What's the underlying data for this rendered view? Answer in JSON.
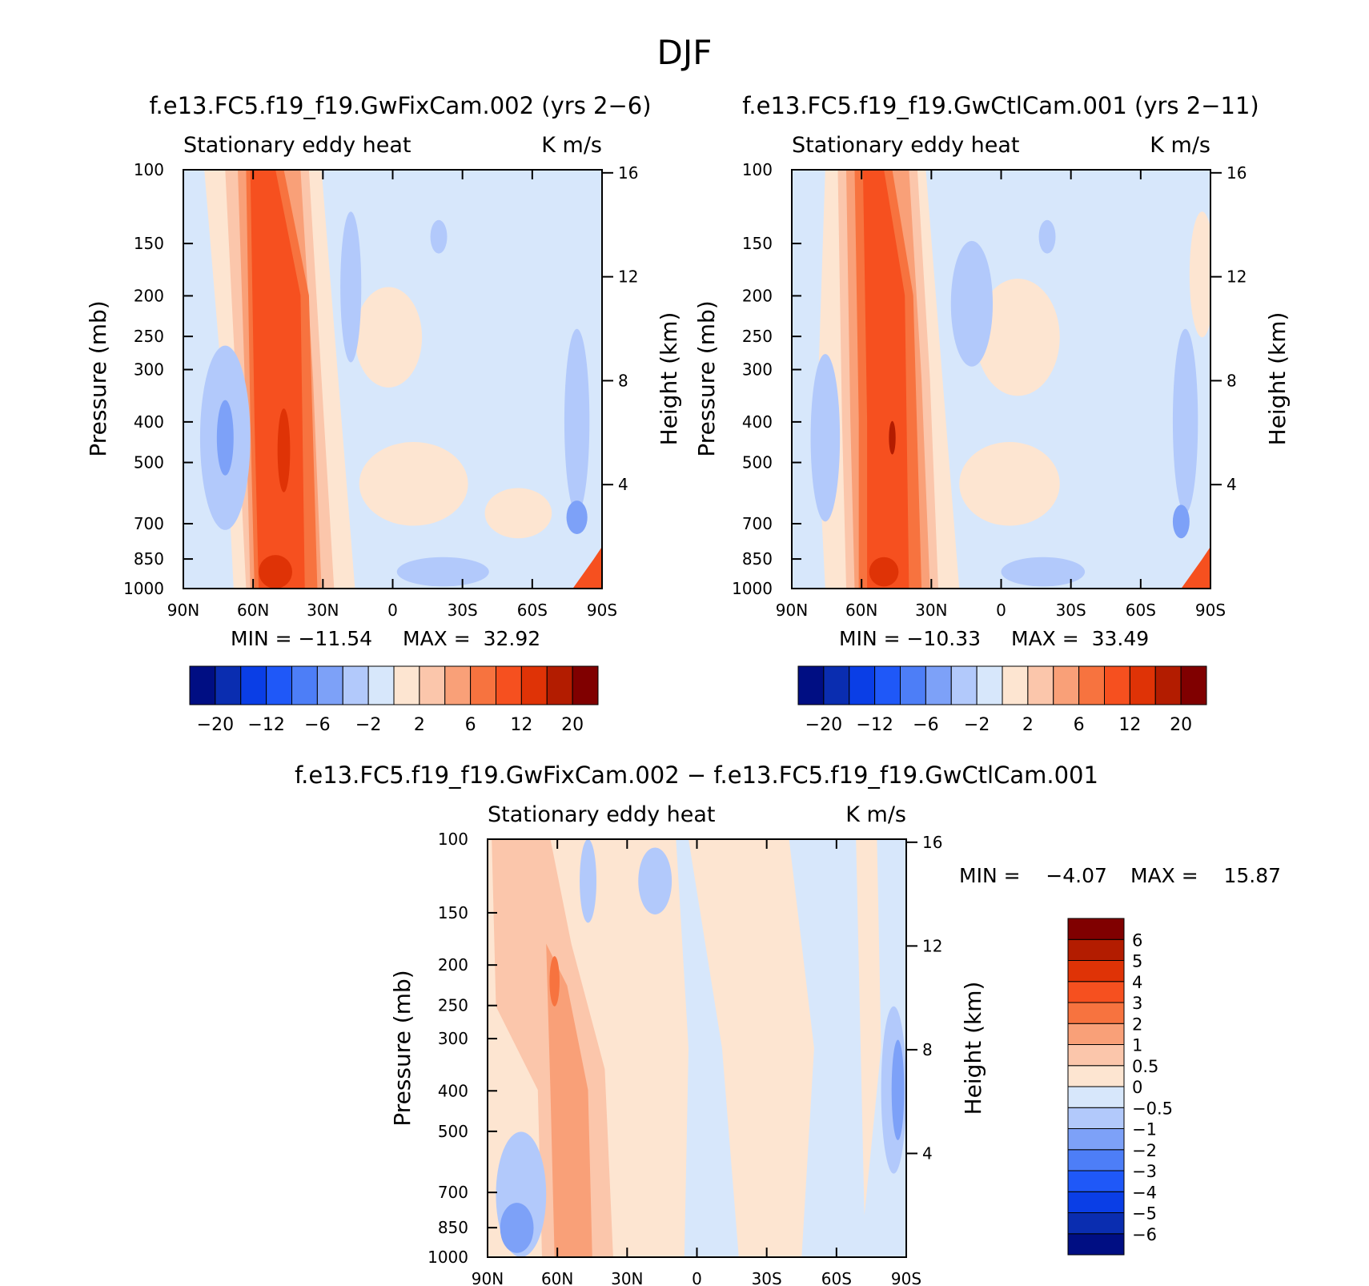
{
  "figure": {
    "title": "DJF"
  },
  "colors": {
    "blue": [
      "#000e83",
      "#0a2db0",
      "#0a3ee6",
      "#1f58f8",
      "#4d7ef7",
      "#7da1f8",
      "#b2c9fb",
      "#d7e7fb"
    ],
    "red": [
      "#fde5d1",
      "#fbc6ab",
      "#f9a078",
      "#f7733f",
      "#f6501f",
      "#df3306",
      "#b31c00",
      "#800000"
    ]
  },
  "chart_data": [
    {
      "type": "heatmap",
      "title": "f.e13.FC5.f19_f19.GwFixCam.002 (yrs 2−6)",
      "subtitle_left": "Stationary eddy heat",
      "subtitle_right": "K m/s",
      "xlabel": "",
      "ylabel": "Pressure (mb)",
      "ylabel_right": "Height (km)",
      "x_ticks": [
        "90N",
        "60N",
        "30N",
        "0",
        "30S",
        "60S",
        "90S"
      ],
      "y_ticks": [
        "100",
        "150",
        "200",
        "250",
        "300",
        "400",
        "500",
        "700",
        "850",
        "1000"
      ],
      "y_right_ticks": [
        "16",
        "12",
        "8",
        "4"
      ],
      "ylim": [
        1000,
        100
      ],
      "y_scale": "log",
      "min_label": "MIN = −11.54",
      "max_label": "MAX =  32.92",
      "min": -11.54,
      "max": 32.92,
      "colorbar": {
        "orientation": "horizontal",
        "levels": [
          -20,
          -16,
          -12,
          -8,
          -6,
          -4,
          -2,
          0,
          2,
          4,
          6,
          8,
          12,
          16,
          20
        ],
        "tick_labels": [
          "−20",
          "−12",
          "−6",
          "−2",
          "2",
          "6",
          "12",
          "20"
        ]
      }
    },
    {
      "type": "heatmap",
      "title": "f.e13.FC5.f19_f19.GwCtlCam.001 (yrs 2−11)",
      "subtitle_left": "Stationary eddy heat",
      "subtitle_right": "K m/s",
      "xlabel": "",
      "ylabel": "Pressure (mb)",
      "ylabel_right": "Height (km)",
      "x_ticks": [
        "90N",
        "60N",
        "30N",
        "0",
        "30S",
        "60S",
        "90S"
      ],
      "y_ticks": [
        "100",
        "150",
        "200",
        "250",
        "300",
        "400",
        "500",
        "700",
        "850",
        "1000"
      ],
      "y_right_ticks": [
        "16",
        "12",
        "8",
        "4"
      ],
      "ylim": [
        1000,
        100
      ],
      "y_scale": "log",
      "min_label": "MIN = −10.33",
      "max_label": "MAX =  33.49",
      "min": -10.33,
      "max": 33.49,
      "colorbar": {
        "orientation": "horizontal",
        "levels": [
          -20,
          -16,
          -12,
          -8,
          -6,
          -4,
          -2,
          0,
          2,
          4,
          6,
          8,
          12,
          16,
          20
        ],
        "tick_labels": [
          "−20",
          "−12",
          "−6",
          "−2",
          "2",
          "6",
          "12",
          "20"
        ]
      }
    },
    {
      "type": "heatmap",
      "title": "f.e13.FC5.f19_f19.GwFixCam.002 − f.e13.FC5.f19_f19.GwCtlCam.001",
      "subtitle_left": "Stationary eddy heat",
      "subtitle_right": "K m/s",
      "xlabel": "",
      "ylabel": "Pressure (mb)",
      "ylabel_right": "Height (km)",
      "x_ticks": [
        "90N",
        "60N",
        "30N",
        "0",
        "30S",
        "60S",
        "90S"
      ],
      "y_ticks": [
        "100",
        "150",
        "200",
        "250",
        "300",
        "400",
        "500",
        "700",
        "850",
        "1000"
      ],
      "y_right_ticks": [
        "16",
        "12",
        "8",
        "4"
      ],
      "ylim": [
        1000,
        100
      ],
      "y_scale": "log",
      "min_label": "MIN =    −4.07",
      "max_label": "MAX =    15.87",
      "min": -4.07,
      "max": 15.87,
      "colorbar": {
        "orientation": "vertical",
        "levels": [
          -6,
          -5,
          -4,
          -3,
          -2,
          -1,
          -0.5,
          0,
          0.5,
          1,
          2,
          3,
          4,
          5,
          6
        ],
        "tick_labels": [
          "−6",
          "−5",
          "−4",
          "−3",
          "−2",
          "−1",
          "−0.5",
          "0",
          "0.5",
          "1",
          "2",
          "3",
          "4",
          "5",
          "6"
        ]
      }
    }
  ]
}
